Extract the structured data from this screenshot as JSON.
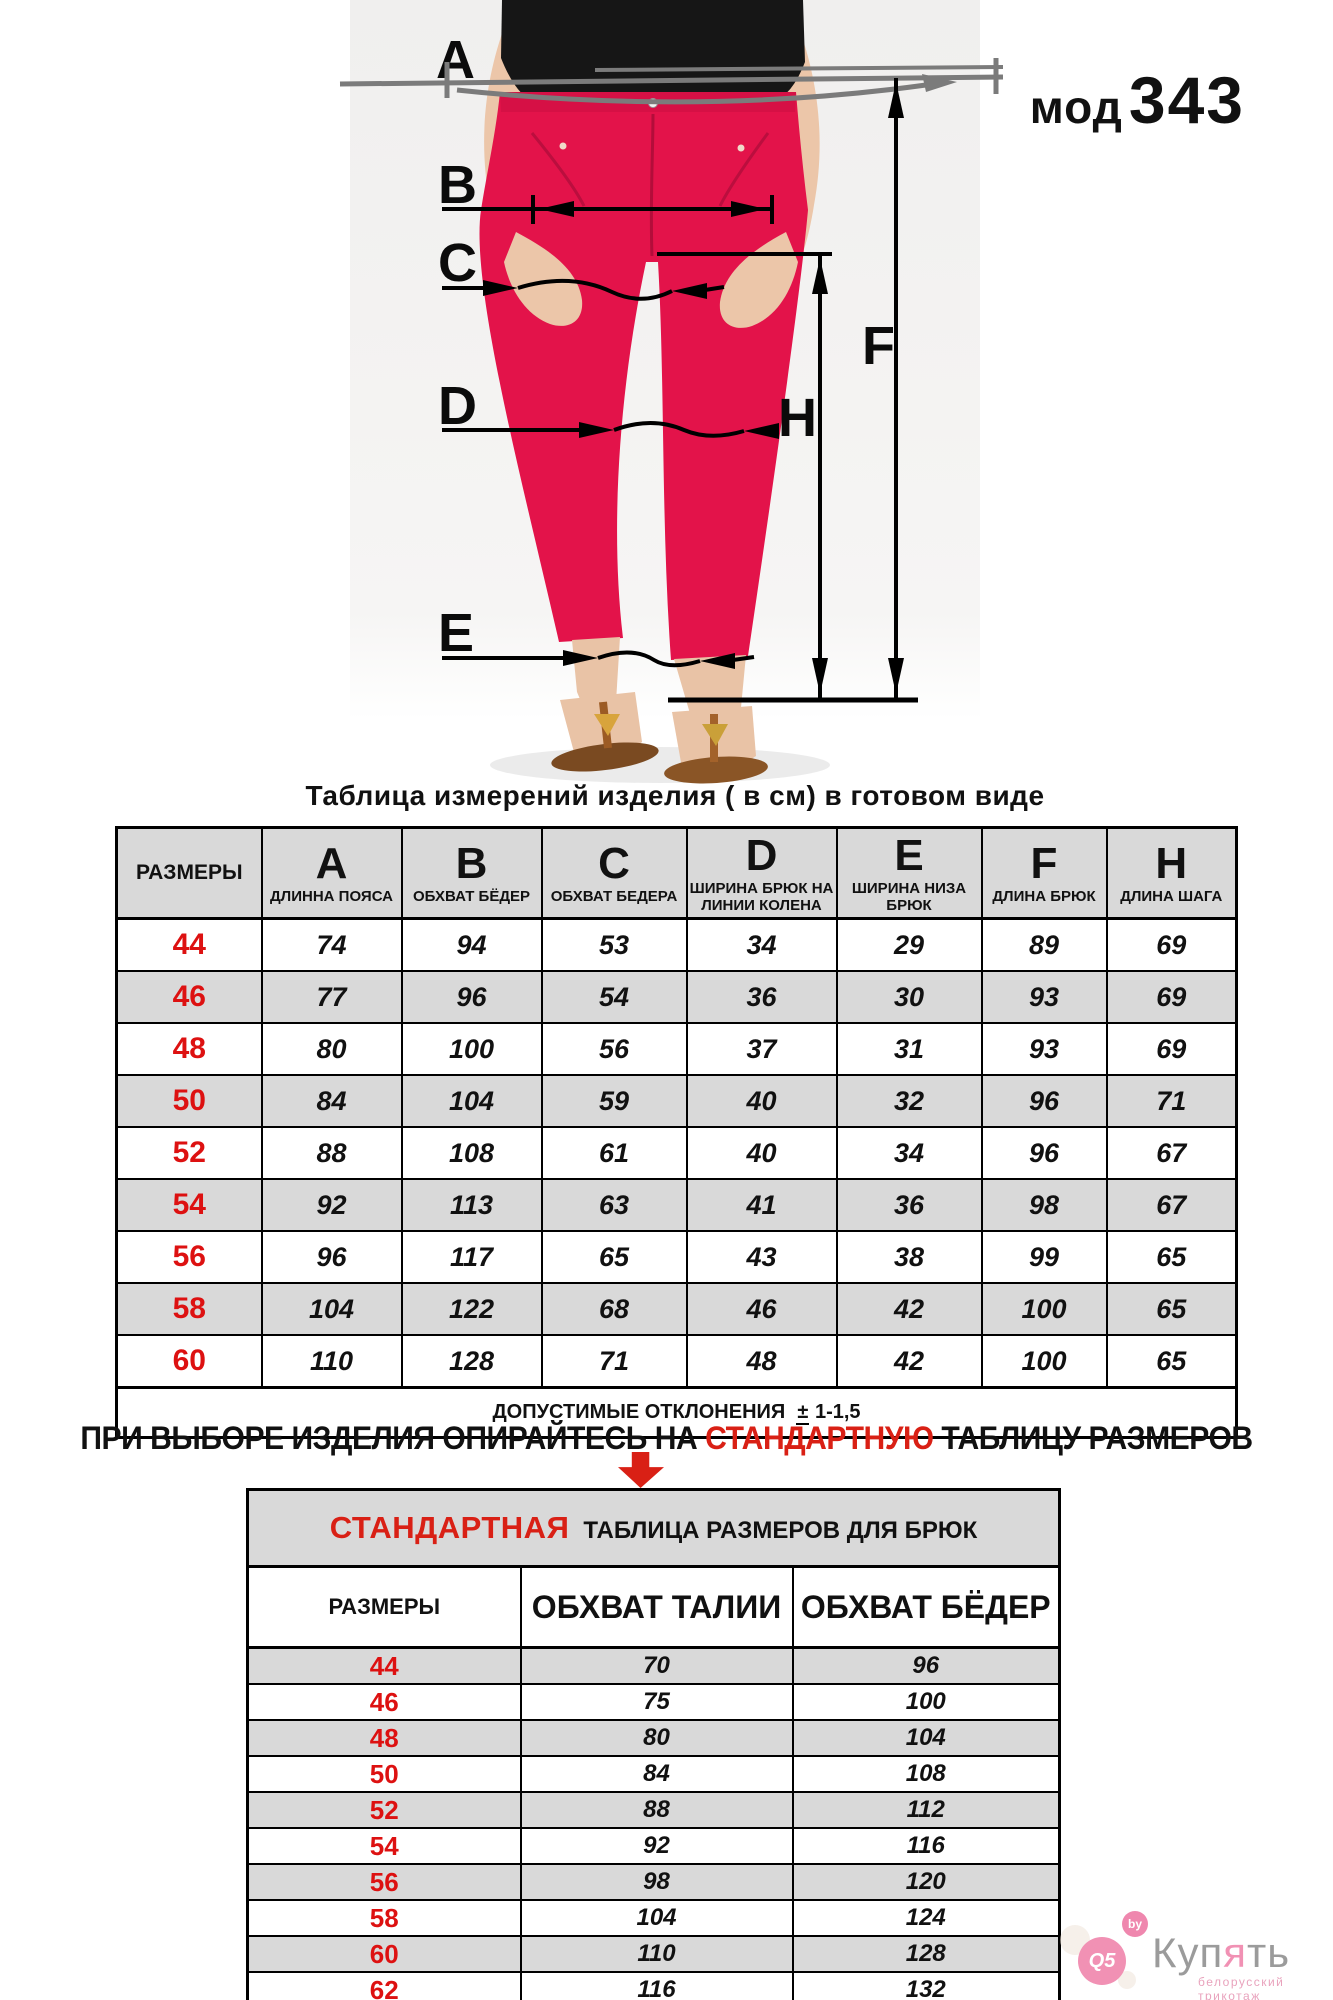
{
  "photo": {
    "measure_labels": {
      "A": "A",
      "B": "B",
      "C": "C",
      "D": "D",
      "E": "E",
      "F": "F",
      "H": "H"
    }
  },
  "model_code": {
    "prefix": "мод",
    "number": "343"
  },
  "table1": {
    "title": "Таблица  измерений изделия ( в см) в готовом виде",
    "size_header": "РАЗМЕРЫ",
    "columns": [
      {
        "letter": "A",
        "label": "ДЛИННА ПОЯСА"
      },
      {
        "letter": "B",
        "label": "ОБХВАТ БЁДЕР"
      },
      {
        "letter": "C",
        "label": "ОБХВАТ БЕДЕРА"
      },
      {
        "letter": "D",
        "label": "ШИРИНА БРЮК НА ЛИНИИ КОЛЕНА"
      },
      {
        "letter": "E",
        "label": "ШИРИНА НИЗА БРЮК"
      },
      {
        "letter": "F",
        "label": "ДЛИНА БРЮК"
      },
      {
        "letter": "H",
        "label": "ДЛИНА ШАГА"
      }
    ],
    "rows": [
      {
        "size": "44",
        "values": [
          "74",
          "94",
          "53",
          "34",
          "29",
          "89",
          "69"
        ]
      },
      {
        "size": "46",
        "values": [
          "77",
          "96",
          "54",
          "36",
          "30",
          "93",
          "69"
        ]
      },
      {
        "size": "48",
        "values": [
          "80",
          "100",
          "56",
          "37",
          "31",
          "93",
          "69"
        ]
      },
      {
        "size": "50",
        "values": [
          "84",
          "104",
          "59",
          "40",
          "32",
          "96",
          "71"
        ]
      },
      {
        "size": "52",
        "values": [
          "88",
          "108",
          "61",
          "40",
          "34",
          "96",
          "67"
        ]
      },
      {
        "size": "54",
        "values": [
          "92",
          "113",
          "63",
          "41",
          "36",
          "98",
          "67"
        ]
      },
      {
        "size": "56",
        "values": [
          "96",
          "117",
          "65",
          "43",
          "38",
          "99",
          "65"
        ]
      },
      {
        "size": "58",
        "values": [
          "104",
          "122",
          "68",
          "46",
          "42",
          "100",
          "65"
        ]
      },
      {
        "size": "60",
        "values": [
          "110",
          "128",
          "71",
          "48",
          "42",
          "100",
          "65"
        ]
      }
    ],
    "footer_label": "ДОПУСТИМЫЕ ОТКЛОНЕНИЯ",
    "footer_pm": "±",
    "footer_value": "1-1,5"
  },
  "advice": {
    "before": "ПРИ ВЫБОРЕ ИЗДЕЛИЯ ОПИРАЙТЕСЬ НА",
    "highlight": "СТАНДАРТНУЮ",
    "after": "ТАБЛИЦУ РАЗМЕРОВ"
  },
  "table2": {
    "title_highlight": "СТАНДАРТНАЯ",
    "title_rest": "ТАБЛИЦА РАЗМЕРОВ ДЛЯ БРЮК",
    "columns": [
      "РАЗМЕРЫ",
      "ОБХВАТ ТАЛИИ",
      "ОБХВАТ БЁДЕР"
    ],
    "rows": [
      {
        "size": "44",
        "waist": "70",
        "hips": "96"
      },
      {
        "size": "46",
        "waist": "75",
        "hips": "100"
      },
      {
        "size": "48",
        "waist": "80",
        "hips": "104"
      },
      {
        "size": "50",
        "waist": "84",
        "hips": "108"
      },
      {
        "size": "52",
        "waist": "88",
        "hips": "112"
      },
      {
        "size": "54",
        "waist": "92",
        "hips": "116"
      },
      {
        "size": "56",
        "waist": "98",
        "hips": "120"
      },
      {
        "size": "58",
        "waist": "104",
        "hips": "124"
      },
      {
        "size": "60",
        "waist": "110",
        "hips": "128"
      },
      {
        "size": "62",
        "waist": "116",
        "hips": "132"
      }
    ]
  },
  "watermark": {
    "badge_small": "by",
    "badge_big": "Q5",
    "brand_part1": "Куп",
    "brand_accent": "я",
    "brand_part2": "ть",
    "subtitle": "белорусский трикотаж"
  },
  "colors": {
    "size_red": "#dd1111",
    "accent_red": "#d92015",
    "pants_red": "#e3134a",
    "row_gray": "#d9d9d9",
    "waist_line_gray": "#7b7b7b"
  }
}
